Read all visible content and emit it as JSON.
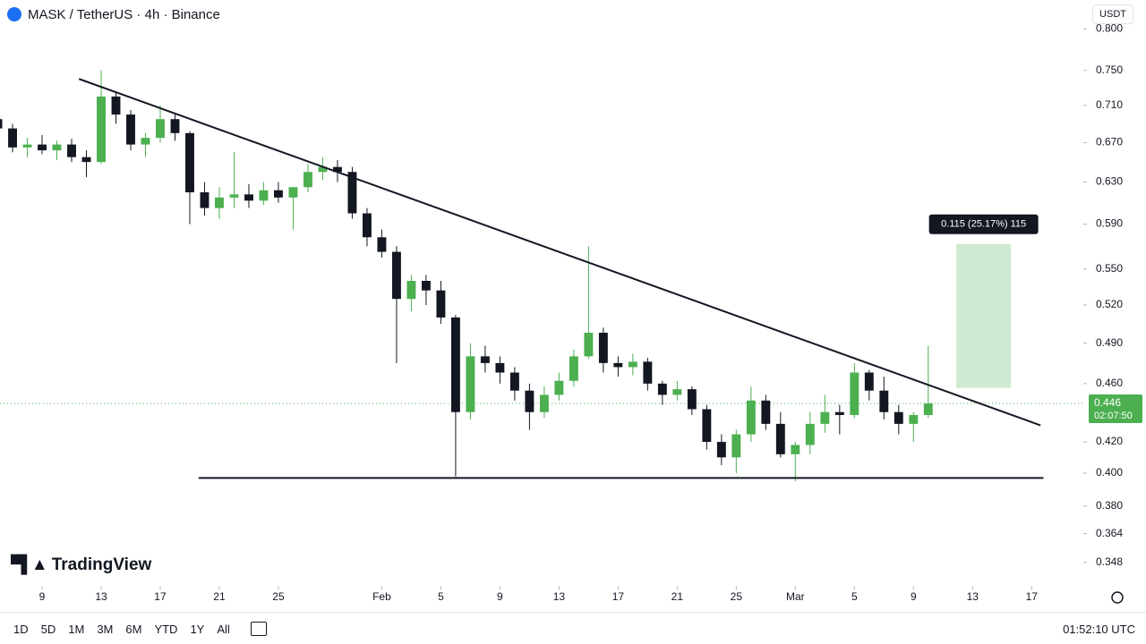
{
  "header": {
    "title": "MASK / TetherUS · 4h · Binance",
    "currency": "USDT"
  },
  "brand": "TradingView",
  "toolbar": {
    "ranges": [
      "1D",
      "5D",
      "1M",
      "3M",
      "6M",
      "YTD",
      "1Y",
      "All"
    ],
    "clock": "01:52:10 UTC"
  },
  "chart_data": {
    "type": "candlestick",
    "log_scale": true,
    "up_color": "#4caf50",
    "down_color": "#131722",
    "xlim": [
      0.15,
      73.5
    ],
    "ylim": [
      0.3355,
      0.837
    ],
    "xticks": [
      {
        "value": 3,
        "label": "9"
      },
      {
        "value": 7,
        "label": "13"
      },
      {
        "value": 11,
        "label": "17"
      },
      {
        "value": 15,
        "label": "21"
      },
      {
        "value": 19,
        "label": "25"
      },
      {
        "value": 26,
        "label": "Feb"
      },
      {
        "value": 30,
        "label": "5"
      },
      {
        "value": 34,
        "label": "9"
      },
      {
        "value": 38,
        "label": "13"
      },
      {
        "value": 42,
        "label": "17"
      },
      {
        "value": 46,
        "label": "21"
      },
      {
        "value": 50,
        "label": "25"
      },
      {
        "value": 54,
        "label": "Mar"
      },
      {
        "value": 58,
        "label": "5"
      },
      {
        "value": 62,
        "label": "9"
      },
      {
        "value": 66,
        "label": "13"
      },
      {
        "value": 70,
        "label": "17"
      }
    ],
    "yticks": [
      {
        "value": 0.8,
        "label": "0.800"
      },
      {
        "value": 0.75,
        "label": "0.750"
      },
      {
        "value": 0.71,
        "label": "0.710"
      },
      {
        "value": 0.67,
        "label": "0.670"
      },
      {
        "value": 0.63,
        "label": "0.630"
      },
      {
        "value": 0.59,
        "label": "0.590"
      },
      {
        "value": 0.55,
        "label": "0.550"
      },
      {
        "value": 0.52,
        "label": "0.520"
      },
      {
        "value": 0.49,
        "label": "0.490"
      },
      {
        "value": 0.46,
        "label": "0.460"
      },
      {
        "value": 0.42,
        "label": "0.420"
      },
      {
        "value": 0.4,
        "label": "0.400"
      },
      {
        "value": 0.38,
        "label": "0.380"
      },
      {
        "value": 0.364,
        "label": "0.364"
      },
      {
        "value": 0.348,
        "label": "0.348"
      }
    ],
    "open": [
      0.695,
      0.685,
      0.665,
      0.668,
      0.662,
      0.668,
      0.655,
      0.65,
      0.72,
      0.7,
      0.668,
      0.675,
      0.695,
      0.68,
      0.62,
      0.605,
      0.615,
      0.618,
      0.612,
      0.622,
      0.615,
      0.625,
      0.64,
      0.645,
      0.64,
      0.6,
      0.578,
      0.565,
      0.525,
      0.54,
      0.532,
      0.51,
      0.44,
      0.48,
      0.475,
      0.468,
      0.455,
      0.44,
      0.452,
      0.462,
      0.48,
      0.498,
      0.475,
      0.472,
      0.476,
      0.46,
      0.452,
      0.456,
      0.442,
      0.42,
      0.41,
      0.425,
      0.448,
      0.432,
      0.412,
      0.418,
      0.432,
      0.44,
      0.438,
      0.468,
      0.455,
      0.44,
      0.432,
      0.438
    ],
    "high": [
      0.705,
      0.69,
      0.675,
      0.678,
      0.672,
      0.674,
      0.662,
      0.75,
      0.725,
      0.705,
      0.68,
      0.71,
      0.7,
      0.682,
      0.63,
      0.625,
      0.66,
      0.628,
      0.63,
      0.63,
      0.625,
      0.648,
      0.655,
      0.652,
      0.645,
      0.605,
      0.585,
      0.57,
      0.545,
      0.545,
      0.54,
      0.512,
      0.49,
      0.488,
      0.48,
      0.472,
      0.46,
      0.458,
      0.468,
      0.485,
      0.57,
      0.502,
      0.48,
      0.482,
      0.479,
      0.462,
      0.462,
      0.458,
      0.445,
      0.425,
      0.428,
      0.458,
      0.452,
      0.44,
      0.42,
      0.44,
      0.452,
      0.445,
      0.475,
      0.47,
      0.465,
      0.445,
      0.44,
      0.488
    ],
    "low": [
      0.68,
      0.66,
      0.655,
      0.658,
      0.652,
      0.65,
      0.635,
      0.648,
      0.69,
      0.662,
      0.655,
      0.67,
      0.672,
      0.59,
      0.598,
      0.595,
      0.605,
      0.605,
      0.608,
      0.61,
      0.585,
      0.62,
      0.632,
      0.63,
      0.595,
      0.57,
      0.56,
      0.475,
      0.515,
      0.52,
      0.505,
      0.398,
      0.435,
      0.468,
      0.46,
      0.448,
      0.428,
      0.436,
      0.448,
      0.458,
      0.478,
      0.468,
      0.465,
      0.466,
      0.455,
      0.445,
      0.448,
      0.438,
      0.415,
      0.405,
      0.4,
      0.42,
      0.428,
      0.41,
      0.395,
      0.412,
      0.426,
      0.425,
      0.436,
      0.448,
      0.435,
      0.425,
      0.42,
      0.436
    ],
    "close": [
      0.685,
      0.665,
      0.668,
      0.662,
      0.668,
      0.655,
      0.65,
      0.72,
      0.7,
      0.668,
      0.675,
      0.695,
      0.68,
      0.62,
      0.605,
      0.615,
      0.618,
      0.612,
      0.622,
      0.615,
      0.625,
      0.64,
      0.645,
      0.64,
      0.6,
      0.578,
      0.565,
      0.525,
      0.54,
      0.532,
      0.51,
      0.44,
      0.48,
      0.475,
      0.468,
      0.455,
      0.44,
      0.452,
      0.462,
      0.48,
      0.498,
      0.475,
      0.472,
      0.476,
      0.46,
      0.452,
      0.456,
      0.442,
      0.42,
      0.41,
      0.425,
      0.448,
      0.432,
      0.412,
      0.418,
      0.432,
      0.44,
      0.438,
      0.468,
      0.455,
      0.44,
      0.432,
      0.438,
      0.446
    ],
    "trendlines": [
      {
        "x": [
          5.5,
          70.6
        ],
        "y": [
          0.74,
          0.431
        ]
      },
      {
        "x": [
          13.6,
          70.8
        ],
        "y": [
          0.397,
          0.397
        ]
      }
    ],
    "measure": {
      "x": [
        64.9,
        68.6
      ],
      "from": 0.457,
      "to": 0.572,
      "label": "0.115 (25.17%) 115"
    },
    "last_price": 0.446,
    "countdown": "02:07:50"
  }
}
